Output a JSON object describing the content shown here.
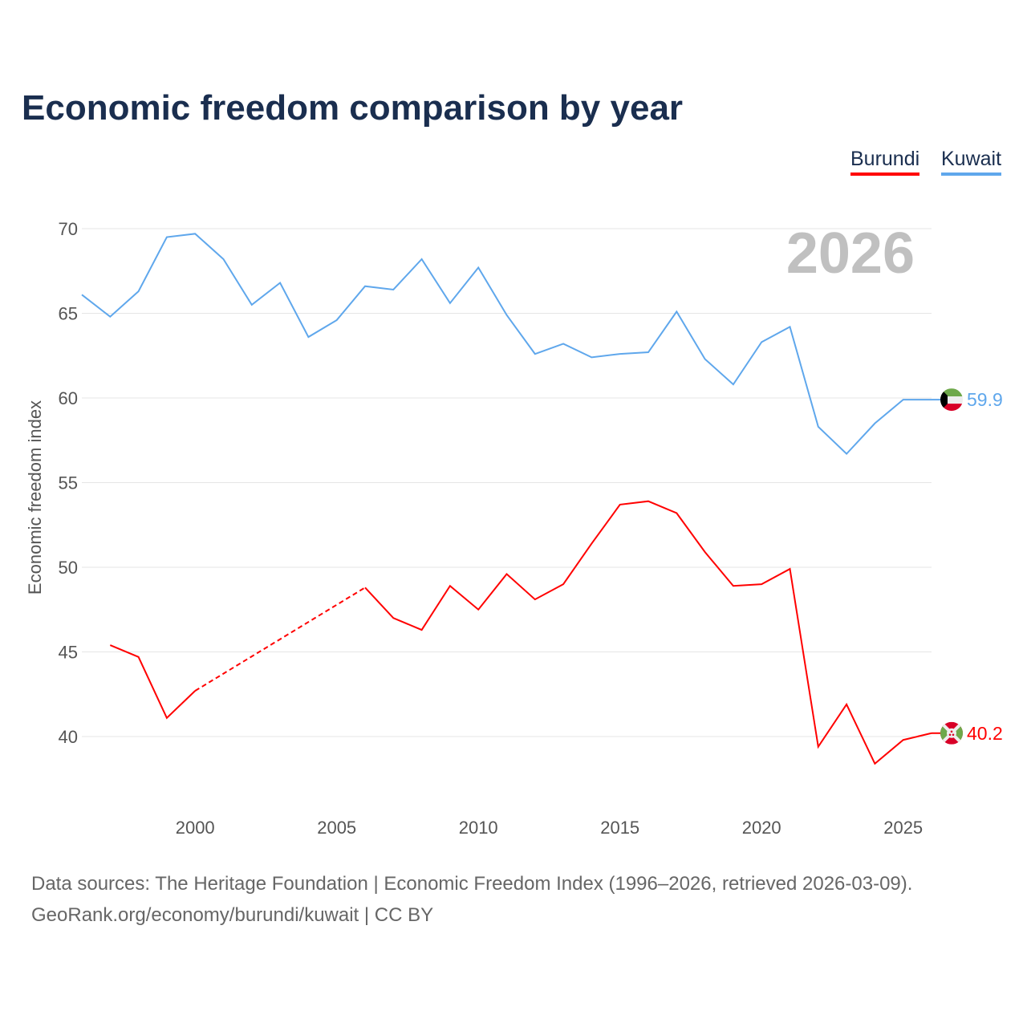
{
  "title": "Economic freedom comparison by year",
  "legend": [
    {
      "label": "Burundi",
      "color": "#ff0000"
    },
    {
      "label": "Kuwait",
      "color": "#5fa7ec"
    }
  ],
  "watermark_year": "2026",
  "sources": {
    "line1": "Data sources: The Heritage Foundation | Economic Freedom Index (1996–2026, retrieved 2026-03-09).",
    "line2": "GeoRank.org/economy/burundi/kuwait | CC BY"
  },
  "chart_data": {
    "type": "line",
    "title": "Economic freedom comparison by year",
    "xlabel": "",
    "ylabel": "Economic freedom index",
    "xlim": [
      1996,
      2026
    ],
    "ylim": [
      35.5,
      71
    ],
    "xticks": [
      "2000",
      "2005",
      "2010",
      "2015",
      "2020",
      "2025"
    ],
    "yticks": [
      "40",
      "45",
      "50",
      "55",
      "60",
      "65",
      "70"
    ],
    "grid": true,
    "legend_position": "top-right",
    "x": [
      1996,
      1997,
      1998,
      1999,
      2000,
      2001,
      2002,
      2003,
      2004,
      2005,
      2006,
      2007,
      2008,
      2009,
      2010,
      2011,
      2012,
      2013,
      2014,
      2015,
      2016,
      2017,
      2018,
      2019,
      2020,
      2021,
      2022,
      2023,
      2024,
      2025,
      2026
    ],
    "series": [
      {
        "name": "Burundi",
        "color": "#ff0000",
        "end_label": "40.2",
        "flag": "burundi-flag",
        "values": [
          null,
          45.4,
          44.7,
          41.1,
          42.7,
          null,
          null,
          null,
          null,
          null,
          48.8,
          47.0,
          46.3,
          48.9,
          47.5,
          49.6,
          48.1,
          49.0,
          51.4,
          53.7,
          53.9,
          53.2,
          50.9,
          48.9,
          49.0,
          49.9,
          39.4,
          41.9,
          38.4,
          39.8,
          40.2
        ]
      },
      {
        "name": "Kuwait",
        "color": "#5fa7ec",
        "end_label": "59.9",
        "flag": "kuwait-flag",
        "values": [
          66.1,
          64.8,
          66.3,
          69.5,
          69.7,
          68.2,
          65.5,
          66.8,
          63.6,
          64.6,
          66.6,
          66.4,
          68.2,
          65.6,
          67.7,
          64.9,
          62.6,
          63.2,
          62.4,
          62.6,
          62.7,
          65.1,
          62.3,
          60.8,
          63.3,
          64.2,
          58.3,
          56.7,
          58.5,
          59.9,
          59.9
        ]
      }
    ]
  }
}
